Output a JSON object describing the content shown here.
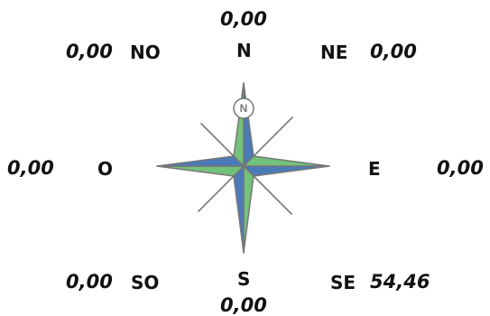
{
  "directions": {
    "N": "N",
    "NE": "NE",
    "E": "E",
    "SE": "SE",
    "S": "S",
    "SO": "SO",
    "O": "O",
    "NO": "NO"
  },
  "values": {
    "N": "0,00",
    "NE": "0,00",
    "E": "0,00",
    "SE": "54,46",
    "S": "0,00",
    "SO": "0,00",
    "O": "0,00",
    "NO": "0,00"
  },
  "rose": {
    "center_label": "N",
    "colors": {
      "blue": "#4a7ab8",
      "green": "#73c27b",
      "outline": "#777777"
    }
  }
}
